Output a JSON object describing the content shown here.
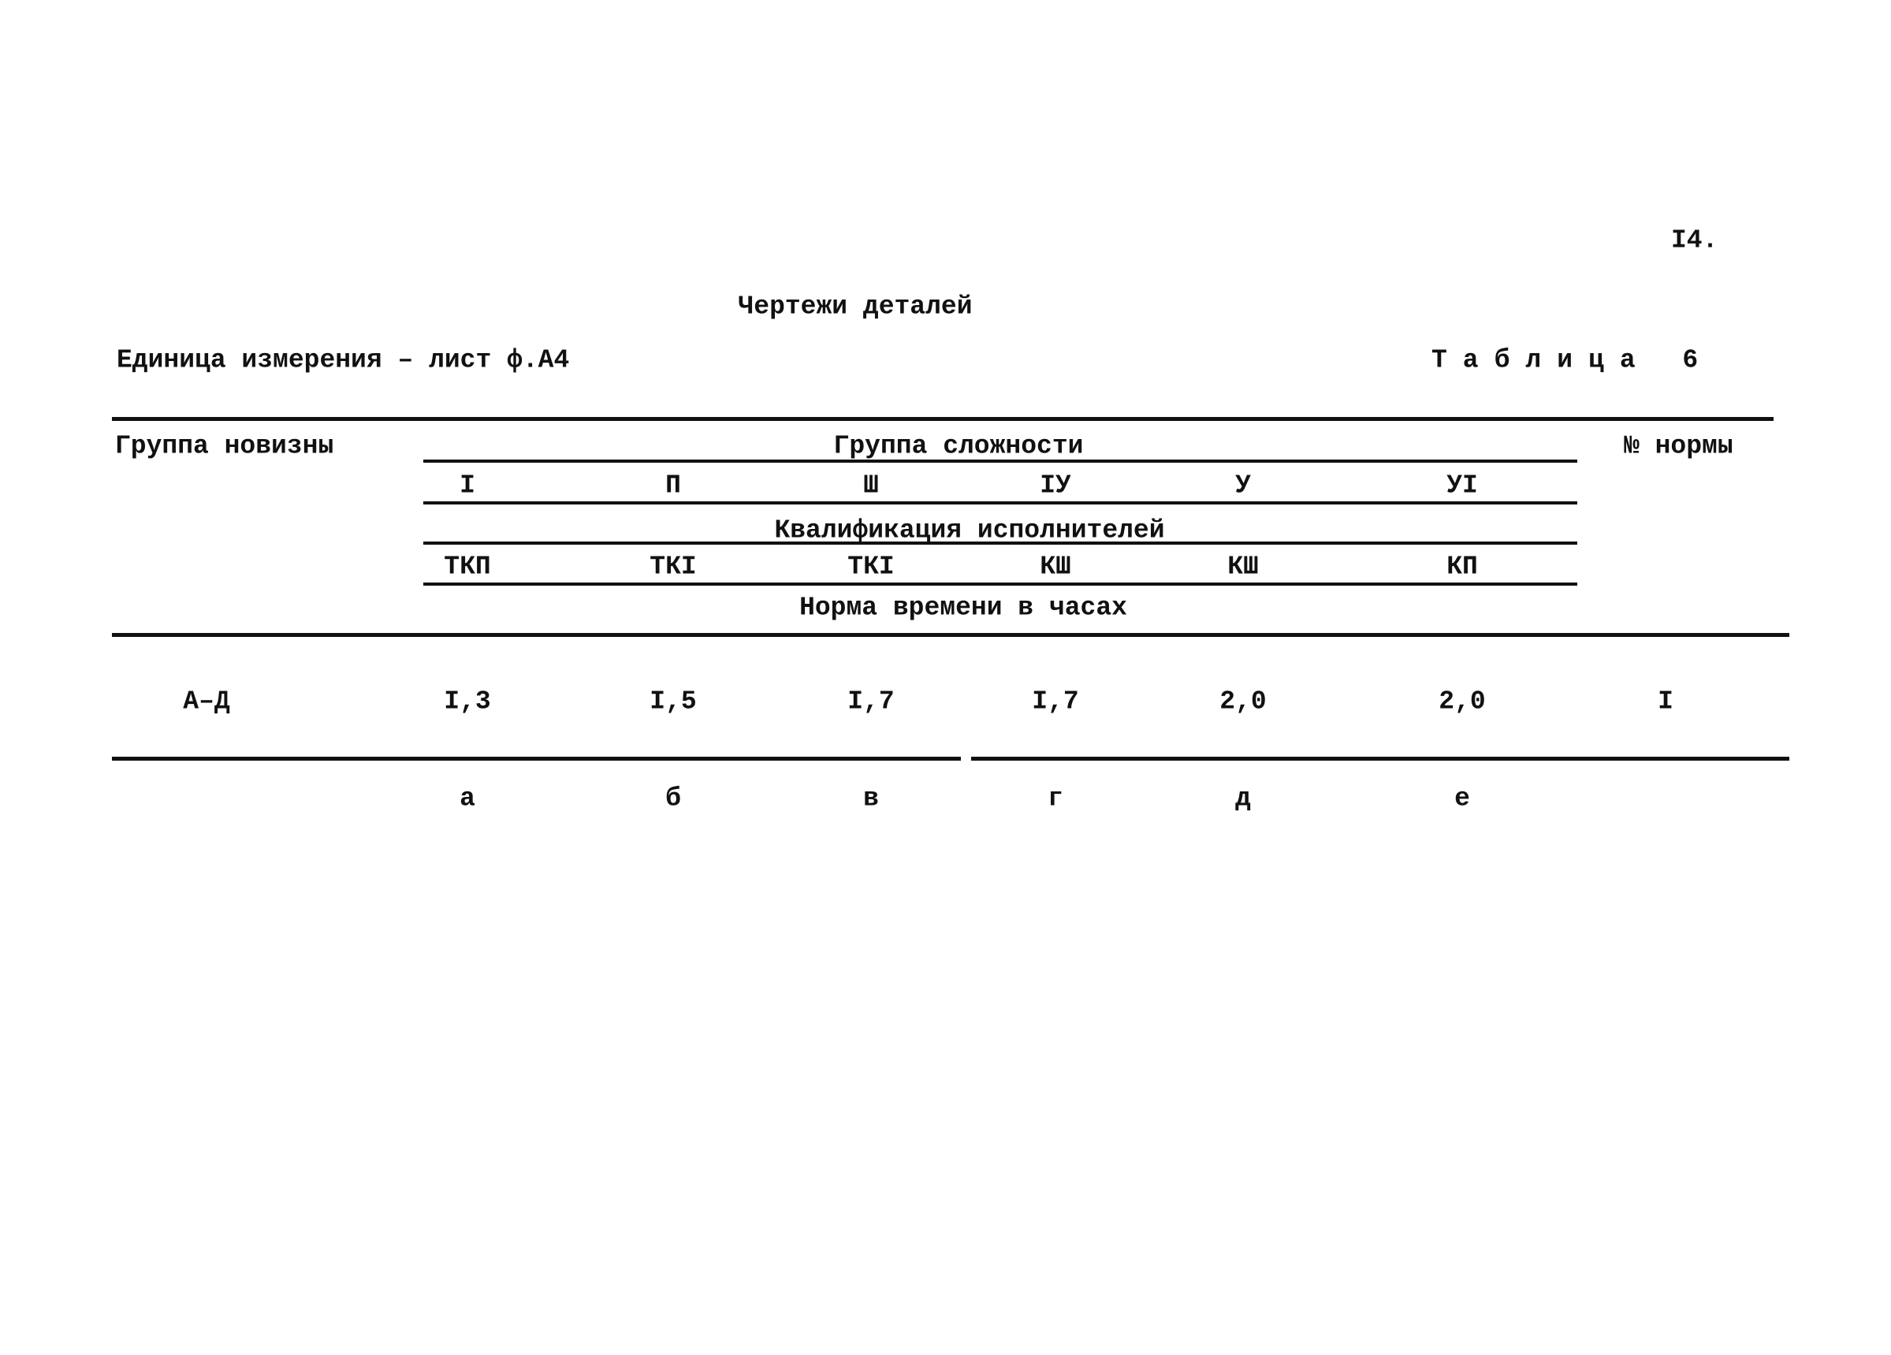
{
  "page_number": "I4.",
  "title": "Чертежи деталей",
  "unit": "Единица измерения – лист ф.А4",
  "table_label": "Таблица 6",
  "table": {
    "headers": {
      "novelty_group": "Группа новизны",
      "complexity_group": "Группа сложности",
      "norm_number": "№ нормы",
      "qualification": "Квалификация исполнителей",
      "time_norm": "Норма времени в часах"
    },
    "columns": [
      {
        "level": "I",
        "qualification": "ТКП",
        "letter": "а"
      },
      {
        "level": "П",
        "qualification": "ТКI",
        "letter": "б"
      },
      {
        "level": "Ш",
        "qualification": "ТКI",
        "letter": "в"
      },
      {
        "level": "IУ",
        "qualification": "КШ",
        "letter": "г"
      },
      {
        "level": "У",
        "qualification": "КШ",
        "letter": "д"
      },
      {
        "level": "УI",
        "qualification": "КП",
        "letter": "е"
      }
    ],
    "rows": [
      {
        "group": "А–Д",
        "values": [
          "I,3",
          "I,5",
          "I,7",
          "I,7",
          "2,0",
          "2,0"
        ],
        "norm": "I"
      }
    ]
  }
}
